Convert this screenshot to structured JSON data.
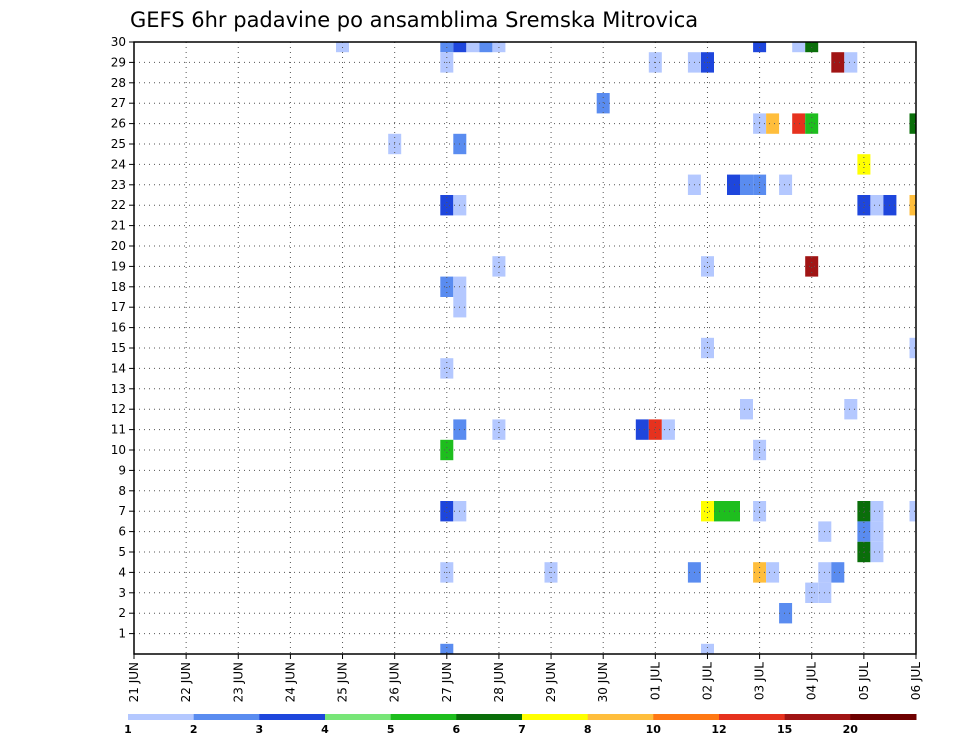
{
  "chart_data": {
    "type": "heatmap",
    "title": "GEFS 6hr padavine po ansamblima Sremska Mitrovica",
    "xlabel": "",
    "ylabel": "",
    "x_ticks": [
      "21 JUN",
      "22 JUN",
      "23 JUN",
      "24 JUN",
      "25 JUN",
      "26 JUN",
      "27 JUN",
      "28 JUN",
      "29 JUN",
      "30 JUN",
      "01 JUL",
      "02 JUL",
      "03 JUL",
      "04 JUL",
      "05 JUL",
      "06 JUL"
    ],
    "y_ticks": [
      1,
      2,
      3,
      4,
      5,
      6,
      7,
      8,
      9,
      10,
      11,
      12,
      13,
      14,
      15,
      16,
      17,
      18,
      19,
      20,
      21,
      22,
      23,
      24,
      25,
      26,
      27,
      28,
      29,
      30
    ],
    "grid": true,
    "colorbar": {
      "labels": [
        "1",
        "2",
        "3",
        "4",
        "5",
        "6",
        "7",
        "8",
        "10",
        "12",
        "15",
        "20"
      ],
      "colors": [
        "#b4c8ff",
        "#5a8cf0",
        "#1e46dc",
        "#78e678",
        "#1ebe1e",
        "#0a6e0a",
        "#ffff00",
        "#ffbe3c",
        "#ff7814",
        "#e6321e",
        "#a01414",
        "#6e0000"
      ]
    },
    "cells": [
      {
        "m": 30,
        "t": "25 JUN",
        "v": 1
      },
      {
        "m": 30,
        "t": "27 JUN",
        "v": 2
      },
      {
        "m": 30,
        "t": "27 JUN 06",
        "v": 3
      },
      {
        "m": 30,
        "t": "27 JUN 12",
        "v": 1
      },
      {
        "m": 30,
        "t": "27 JUN 18",
        "v": 2
      },
      {
        "m": 30,
        "t": "28 JUN",
        "v": 1
      },
      {
        "m": 30,
        "t": "03 JUL",
        "v": 3
      },
      {
        "m": 30,
        "t": "03 JUL 18",
        "v": 1
      },
      {
        "m": 30,
        "t": "04 JUL",
        "v": 6
      },
      {
        "m": 29,
        "t": "27 JUN",
        "v": 1
      },
      {
        "m": 29,
        "t": "01 JUL",
        "v": 1
      },
      {
        "m": 29,
        "t": "01 JUL 18",
        "v": 1
      },
      {
        "m": 29,
        "t": "02 JUL",
        "v": 3
      },
      {
        "m": 29,
        "t": "04 JUL 12",
        "v": 15
      },
      {
        "m": 29,
        "t": "04 JUL 18",
        "v": 1
      },
      {
        "m": 27,
        "t": "30 JUN",
        "v": 2
      },
      {
        "m": 26,
        "t": "03 JUL",
        "v": 1
      },
      {
        "m": 26,
        "t": "03 JUL 06",
        "v": 8
      },
      {
        "m": 26,
        "t": "03 JUL 18",
        "v": 12
      },
      {
        "m": 26,
        "t": "04 JUL",
        "v": 5
      },
      {
        "m": 26,
        "t": "06 JUL",
        "v": 6
      },
      {
        "m": 25,
        "t": "26 JUN",
        "v": 1
      },
      {
        "m": 25,
        "t": "27 JUN 06",
        "v": 2
      },
      {
        "m": 24,
        "t": "05 JUL",
        "v": 7
      },
      {
        "m": 23,
        "t": "01 JUL 18",
        "v": 1
      },
      {
        "m": 23,
        "t": "02 JUL 12",
        "v": 3
      },
      {
        "m": 23,
        "t": "02 JUL 18",
        "v": 2
      },
      {
        "m": 23,
        "t": "03 JUL",
        "v": 2
      },
      {
        "m": 23,
        "t": "03 JUL 12",
        "v": 1
      },
      {
        "m": 22,
        "t": "27 JUN",
        "v": 3
      },
      {
        "m": 22,
        "t": "27 JUN 06",
        "v": 1
      },
      {
        "m": 22,
        "t": "05 JUL",
        "v": 3
      },
      {
        "m": 22,
        "t": "05 JUL 06",
        "v": 1
      },
      {
        "m": 22,
        "t": "05 JUL 12",
        "v": 3
      },
      {
        "m": 22,
        "t": "06 JUL",
        "v": 8
      },
      {
        "m": 19,
        "t": "28 JUN",
        "v": 1
      },
      {
        "m": 19,
        "t": "02 JUL",
        "v": 1
      },
      {
        "m": 19,
        "t": "04 JUL",
        "v": 15
      },
      {
        "m": 18,
        "t": "27 JUN",
        "v": 2
      },
      {
        "m": 18,
        "t": "27 JUN 06",
        "v": 1
      },
      {
        "m": 17,
        "t": "27 JUN 06",
        "v": 1
      },
      {
        "m": 15,
        "t": "02 JUL",
        "v": 1
      },
      {
        "m": 15,
        "t": "06 JUL",
        "v": 1
      },
      {
        "m": 14,
        "t": "27 JUN",
        "v": 1
      },
      {
        "m": 12,
        "t": "02 JUL 18",
        "v": 1
      },
      {
        "m": 12,
        "t": "04 JUL 18",
        "v": 1
      },
      {
        "m": 11,
        "t": "27 JUN 06",
        "v": 2
      },
      {
        "m": 11,
        "t": "28 JUN",
        "v": 1
      },
      {
        "m": 11,
        "t": "30 JUN 18",
        "v": 3
      },
      {
        "m": 11,
        "t": "01 JUL",
        "v": 12
      },
      {
        "m": 11,
        "t": "01 JUL 06",
        "v": 1
      },
      {
        "m": 10,
        "t": "27 JUN",
        "v": 5
      },
      {
        "m": 10,
        "t": "03 JUL",
        "v": 1
      },
      {
        "m": 7,
        "t": "27 JUN",
        "v": 3
      },
      {
        "m": 7,
        "t": "27 JUN 06",
        "v": 1
      },
      {
        "m": 7,
        "t": "02 JUL",
        "v": 7
      },
      {
        "m": 7,
        "t": "02 JUL 06",
        "v": 5
      },
      {
        "m": 7,
        "t": "02 JUL 12",
        "v": 5
      },
      {
        "m": 7,
        "t": "03 JUL",
        "v": 1
      },
      {
        "m": 7,
        "t": "05 JUL",
        "v": 6
      },
      {
        "m": 7,
        "t": "05 JUL 06",
        "v": 1
      },
      {
        "m": 7,
        "t": "06 JUL",
        "v": 1
      },
      {
        "m": 6,
        "t": "04 JUL 06",
        "v": 1
      },
      {
        "m": 6,
        "t": "05 JUL",
        "v": 2
      },
      {
        "m": 6,
        "t": "05 JUL 06",
        "v": 1
      },
      {
        "m": 5,
        "t": "05 JUL",
        "v": 6
      },
      {
        "m": 5,
        "t": "05 JUL 06",
        "v": 1
      },
      {
        "m": 4,
        "t": "27 JUN",
        "v": 1
      },
      {
        "m": 4,
        "t": "29 JUN",
        "v": 1
      },
      {
        "m": 4,
        "t": "01 JUL 18",
        "v": 2
      },
      {
        "m": 4,
        "t": "03 JUL",
        "v": 8
      },
      {
        "m": 4,
        "t": "03 JUL 06",
        "v": 1
      },
      {
        "m": 4,
        "t": "04 JUL 06",
        "v": 1
      },
      {
        "m": 4,
        "t": "04 JUL 12",
        "v": 2
      },
      {
        "m": 3,
        "t": "04 JUL",
        "v": 1
      },
      {
        "m": 3,
        "t": "04 JUL 06",
        "v": 1
      },
      {
        "m": 2,
        "t": "03 JUL 12",
        "v": 2
      },
      {
        "m": 0,
        "t": "27 JUN",
        "v": 2
      },
      {
        "m": 0,
        "t": "02 JUL",
        "v": 1
      }
    ]
  }
}
